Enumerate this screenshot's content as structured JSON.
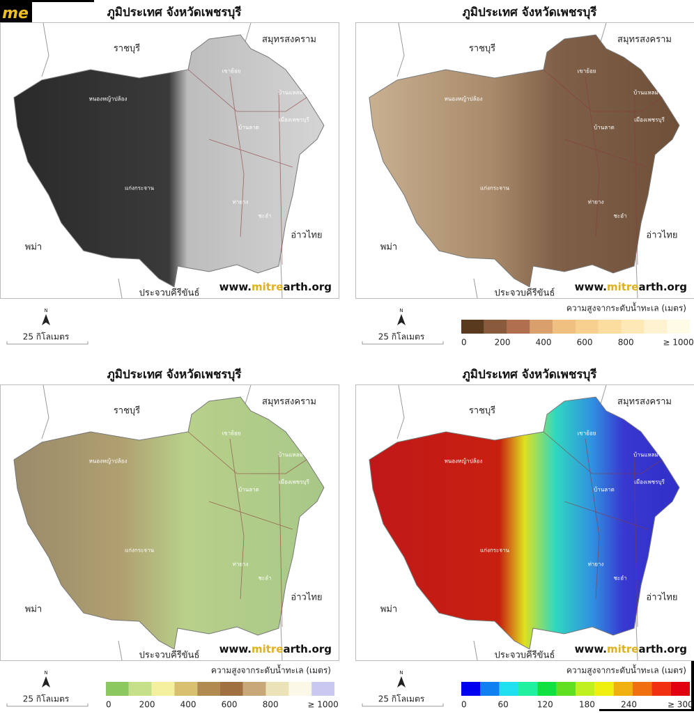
{
  "logo": "me",
  "panels": [
    {
      "title": "ภูมิประเทศ จังหวัดเพชรบุรี",
      "regions": [
        "ราชบุรี",
        "สมุทรสงคราม",
        "พม่า",
        "อ่าวไทย",
        "ประจวบคีรีขันธ์"
      ],
      "places": [
        "เขาย้อย",
        "บ้านแหลม",
        "หนองหญ้าปล้อง",
        "เมืองเพชรบุรี",
        "บ้านลาด",
        "แก่งกระจาน",
        "ท่ายาง",
        "ชะอำ"
      ],
      "website": [
        "www.",
        "mitre",
        "arth.org"
      ],
      "north": "N",
      "scale": "25 กิโลเมตร"
    },
    {
      "title": "ภูมิประเทศ จังหวัดเพชรบุรี",
      "regions": [
        "ราชบุรี",
        "สมุทรสงคราม",
        "พม่า",
        "อ่าวไทย",
        "ประจวบคีรีขันธ์"
      ],
      "places": [
        "เขาย้อย",
        "บ้านแหลม",
        "หนองหญ้าปล้อง",
        "เมืองเพชรบุรี",
        "บ้านลาด",
        "แก่งกระจาน",
        "ท่ายาง",
        "ชะอำ"
      ],
      "website": [
        "www.",
        "mitre",
        "arth.org"
      ],
      "north": "N",
      "scale": "25 กิโลเมตร",
      "legend": {
        "title": "ความสูงจากระดับน้ำทะเล (เมตร)",
        "colors": [
          "#5a3a1e",
          "#8a5a3c",
          "#b0704f",
          "#d9a06e",
          "#efc07f",
          "#f7d08f",
          "#fbdda0",
          "#fde8b6",
          "#fef2d0",
          "#fffbe6"
        ],
        "ticks": [
          "0",
          "200",
          "400",
          "600",
          "800",
          "≥ 1000"
        ]
      }
    },
    {
      "title": "ภูมิประเทศ จังหวัดเพชรบุรี",
      "regions": [
        "ราชบุรี",
        "สมุทรสงคราม",
        "พม่า",
        "อ่าวไทย",
        "ประจวบคีรีขันธ์"
      ],
      "places": [
        "เขาย้อย",
        "บ้านแหลม",
        "หนองหญ้าปล้อง",
        "เมืองเพชรบุรี",
        "บ้านลาด",
        "แก่งกระจาน",
        "ท่ายาง",
        "ชะอำ"
      ],
      "website": [
        "www.",
        "mitre",
        "arth.org"
      ],
      "north": "N",
      "scale": "25 กิโลเมตร",
      "legend": {
        "title": "ความสูงจากระดับน้ำทะเล (เมตร)",
        "colors": [
          "#8cc860",
          "#c6e08a",
          "#f4f0a0",
          "#d8c070",
          "#b08a50",
          "#a07040",
          "#c8a878",
          "#ece2b8",
          "#fbf8e8",
          "#c8c8f0"
        ],
        "ticks": [
          "0",
          "200",
          "400",
          "600",
          "800",
          "≥ 1000"
        ]
      }
    },
    {
      "title": "ภูมิประเทศ จังหวัดเพชรบุรี",
      "regions": [
        "ราชบุรี",
        "สมุทรสงคราม",
        "พม่า",
        "อ่าวไทย",
        "ประจวบคีรีขันธ์"
      ],
      "places": [
        "เขาย้อย",
        "บ้านแหลม",
        "หนองหญ้าปล้อง",
        "เมืองเพชรบุรี",
        "บ้านลาด",
        "แก่งกระจาน",
        "ท่ายาง",
        "ชะอำ"
      ],
      "website": [
        "www.",
        "mitre",
        "arth.org"
      ],
      "north": "N",
      "scale": "25 กิโลเมตร",
      "legend": {
        "title": "ความสูงจากระดับน้ำทะเล (เมตร)",
        "colors": [
          "#0000f0",
          "#1080f0",
          "#20e0f0",
          "#20f0a0",
          "#10e040",
          "#60e020",
          "#c0f020",
          "#f0f010",
          "#f0b010",
          "#f07010",
          "#f03010",
          "#e00010"
        ],
        "ticks": [
          "0",
          "60",
          "120",
          "180",
          "240",
          "≥ 300"
        ]
      }
    }
  ]
}
